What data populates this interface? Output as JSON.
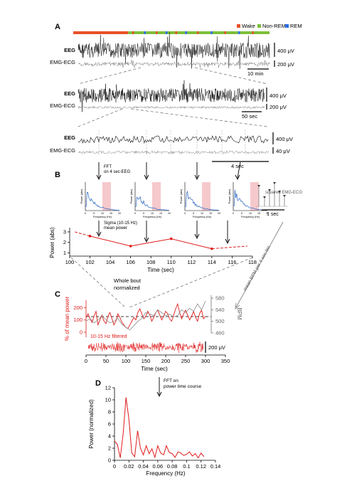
{
  "panels": {
    "A": {
      "letter": "A",
      "legend": [
        {
          "label": "Wake",
          "color": "#e8502a"
        },
        {
          "label": "Non-REM",
          "color": "#7cbf3a"
        },
        {
          "label": "REM",
          "color": "#2a6ee8"
        }
      ],
      "trace_labels": {
        "eeg": "EEG",
        "emg": "EMG-ECG"
      },
      "scales": {
        "row1_eeg": "400 μV",
        "row1_emg": "200 μV",
        "row1_time": "10 min",
        "row2_eeg": "400 μV",
        "row2_emg": "200 μV",
        "row2_time": "50 sec",
        "row3_eeg": "400 μV",
        "row3_emg": "40 μV",
        "row3_time": "4 sec"
      }
    },
    "B": {
      "letter": "B",
      "fft_label": "FFT\non 4 sec-EEG",
      "squared_label": "squared EMG-ECG",
      "squared_scale": "1 sec",
      "sigma_label": "Sigma (10-15 Hz)\nmean power",
      "mean_bpm_label": "mean BPM per 4 sec-bin",
      "inset_ylabel": "Power (abs)",
      "inset_xlabel": "Frequency (Hz)",
      "inset_xticks": [
        "0",
        "5",
        "10",
        "15",
        "20"
      ],
      "chart": {
        "ylabel": "Power (abs)",
        "xlabel": "Time (sec)",
        "xticks": [
          "100",
          "102",
          "104",
          "106",
          "108",
          "110",
          "112",
          "114",
          "116",
          "118"
        ],
        "yticks": [
          "1",
          "2",
          "3"
        ]
      }
    },
    "C": {
      "letter": "C",
      "whole_bout": "Whole bout\nnormalized",
      "ylabel_left": "% of mean power",
      "ylabel_right": "BPM",
      "xlabel": "Time (sec)",
      "xticks": [
        "0",
        "50",
        "100",
        "150",
        "200",
        "250",
        "300",
        "350"
      ],
      "yticks_left": [
        "0",
        "100",
        "200"
      ],
      "yticks_right": [
        "460",
        "500",
        "540",
        "580"
      ],
      "filtered_label": "10-15 Hz filtered",
      "filtered_scale": "200 μV"
    },
    "D": {
      "letter": "D",
      "fft_label": "FFT on\npower time course",
      "ylabel": "Power (normalized)",
      "xlabel": "Frequency (Hz)",
      "xticks": [
        "0",
        "0.02",
        "0.04",
        "0.06",
        "0.08",
        "0.1",
        "0.12",
        "0.14"
      ],
      "yticks": [
        "0",
        "2",
        "4",
        "6",
        "8",
        "10",
        "12"
      ]
    }
  },
  "chart_data": [
    {
      "type": "line",
      "panel": "B",
      "x": [
        100.5,
        102,
        106,
        110,
        114,
        117.5
      ],
      "values": [
        3.0,
        2.6,
        1.65,
        2.35,
        1.4,
        1.65
      ],
      "xlim": [
        100,
        118
      ],
      "ylim": [
        0.7,
        3.4
      ],
      "color": "#e01b1b"
    },
    {
      "type": "line",
      "panel": "C",
      "xlim": [
        0,
        350
      ],
      "ylim_left": [
        -40,
        260
      ],
      "ylim_right": [
        460,
        590
      ],
      "series": [
        {
          "axis": "left",
          "color": "#e01b1b",
          "x": [
            0,
            5,
            10,
            15,
            20,
            25,
            30,
            35,
            40,
            45,
            50,
            55,
            60,
            65,
            70,
            75,
            80,
            85,
            90,
            95,
            100,
            105,
            110,
            115,
            120,
            125,
            130,
            135,
            140,
            145,
            150,
            155,
            160,
            165,
            170,
            175,
            180,
            185,
            190,
            195,
            200,
            205,
            210,
            215,
            220,
            225,
            230,
            235,
            240,
            245,
            250,
            255,
            260,
            265,
            270,
            275,
            280,
            285,
            290,
            295,
            300
          ],
          "values": [
            120,
            150,
            110,
            80,
            130,
            170,
            60,
            100,
            140,
            90,
            70,
            130,
            160,
            110,
            60,
            90,
            150,
            120,
            80,
            60,
            40,
            30,
            60,
            90,
            120,
            100,
            160,
            190,
            150,
            110,
            130,
            170,
            140,
            90,
            120,
            160,
            180,
            140,
            100,
            130,
            170,
            150,
            110,
            90,
            140,
            190,
            230,
            160,
            110,
            150,
            180,
            140,
            100,
            130,
            170,
            120,
            90,
            150,
            180,
            110,
            130
          ]
        },
        {
          "axis": "right",
          "color": "#8c8c8c",
          "x": [
            0,
            10,
            20,
            30,
            40,
            50,
            60,
            70,
            80,
            90,
            100,
            110,
            120,
            130,
            140,
            150,
            160,
            170,
            180,
            190,
            200,
            210,
            220,
            230,
            240,
            250,
            260,
            270,
            280,
            290,
            300
          ],
          "values": [
            500,
            510,
            495,
            505,
            520,
            505,
            495,
            500,
            510,
            490,
            480,
            470,
            485,
            500,
            510,
            530,
            525,
            520,
            540,
            530,
            520,
            525,
            515,
            520,
            540,
            530,
            545,
            535,
            560,
            540,
            570
          ]
        }
      ]
    },
    {
      "type": "line",
      "panel": "D",
      "x": [
        0,
        0.004,
        0.008,
        0.012,
        0.016,
        0.02,
        0.024,
        0.028,
        0.032,
        0.036,
        0.04,
        0.044,
        0.048,
        0.052,
        0.056,
        0.06,
        0.064,
        0.068,
        0.072,
        0.076,
        0.08,
        0.084,
        0.088,
        0.092,
        0.096,
        0.1,
        0.104,
        0.108,
        0.112,
        0.116,
        0.12,
        0.124
      ],
      "values": [
        3.2,
        2.6,
        0.4,
        4.4,
        10.4,
        6.8,
        1.2,
        0.6,
        4.9,
        2.0,
        0.9,
        2.4,
        1.1,
        1.9,
        0.5,
        2.4,
        1.2,
        0.9,
        2.4,
        1.3,
        1.1,
        0.5,
        1.4,
        1.2,
        0.8,
        1.0,
        1.4,
        0.7,
        1.1,
        0.4,
        1.2,
        0.6
      ],
      "xlim": [
        0,
        0.14
      ],
      "ylim": [
        0,
        12
      ],
      "color": "#e01b1b"
    }
  ]
}
